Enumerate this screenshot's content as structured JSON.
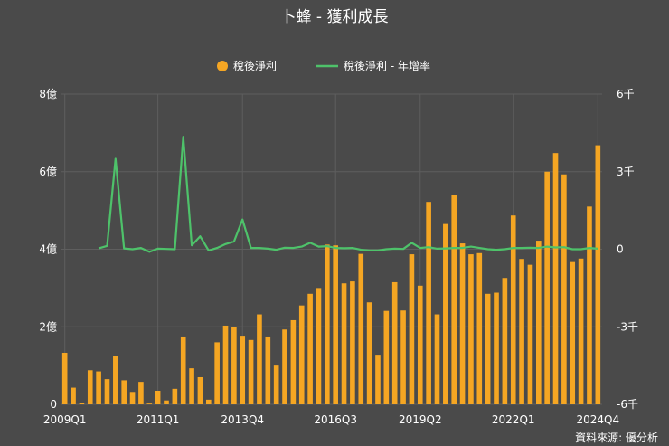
{
  "chart_data": {
    "type": "bar+line",
    "title": "卜蜂 - 獲利成長",
    "source": "資料來源: 優分析",
    "legend": {
      "position": "top-center",
      "bar_label": "稅後淨利",
      "line_label": "稅後淨利 - 年增率"
    },
    "x_tick_labels": [
      "2009Q1",
      "2011Q1",
      "2013Q4",
      "2016Q3",
      "2019Q2",
      "2022Q1",
      "2024Q4"
    ],
    "y_left": {
      "ticks": [
        "0",
        "2億",
        "4億",
        "6億",
        "8億"
      ],
      "ylim": [
        0,
        8
      ]
    },
    "y_right": {
      "ticks": [
        "-6千",
        "-3千",
        "0",
        "3千",
        "6千"
      ],
      "ylim": [
        -6000,
        6000
      ]
    },
    "colors": {
      "bar": "#f5a623",
      "line": "#4ec26a",
      "background": "#4a4a4a",
      "grid": "#5e5e5e"
    },
    "series": [
      {
        "name": "稅後淨利",
        "type": "bar",
        "axis": "left",
        "unit": "億",
        "values": [
          1.33,
          0.43,
          0.03,
          0.88,
          0.85,
          0.65,
          1.25,
          0.62,
          0.32,
          0.58,
          0.02,
          0.35,
          0.1,
          0.4,
          1.75,
          0.93,
          0.7,
          0.12,
          1.6,
          2.03,
          2.0,
          1.77,
          1.66,
          2.32,
          1.75,
          1.0,
          1.93,
          2.17,
          2.55,
          2.85,
          3.0,
          4.12,
          4.1,
          3.12,
          3.17,
          3.88,
          2.63,
          1.28,
          2.41,
          3.15,
          2.42,
          3.87,
          3.06,
          5.22,
          2.32,
          4.65,
          5.4,
          4.15,
          3.87,
          3.9,
          2.85,
          2.88,
          3.26,
          4.87,
          3.75,
          3.6,
          4.22,
          6.0,
          6.48,
          5.93,
          3.67,
          3.76,
          5.1,
          6.68
        ]
      },
      {
        "name": "稅後淨利 - 年增率",
        "type": "line",
        "axis": "right",
        "unit": "%",
        "values": [
          null,
          null,
          null,
          null,
          30,
          130,
          3500,
          30,
          0,
          50,
          -100,
          20,
          10,
          0,
          4350,
          150,
          500,
          -50,
          50,
          200,
          300,
          1150,
          50,
          50,
          20,
          -20,
          60,
          50,
          100,
          250,
          100,
          120,
          50,
          40,
          50,
          -20,
          -50,
          -50,
          0,
          20,
          10,
          250,
          50,
          80,
          20,
          30,
          50,
          50,
          100,
          50,
          0,
          -20,
          0,
          50,
          50,
          60,
          50,
          100,
          70,
          80,
          0,
          0,
          50,
          20
        ]
      }
    ]
  }
}
